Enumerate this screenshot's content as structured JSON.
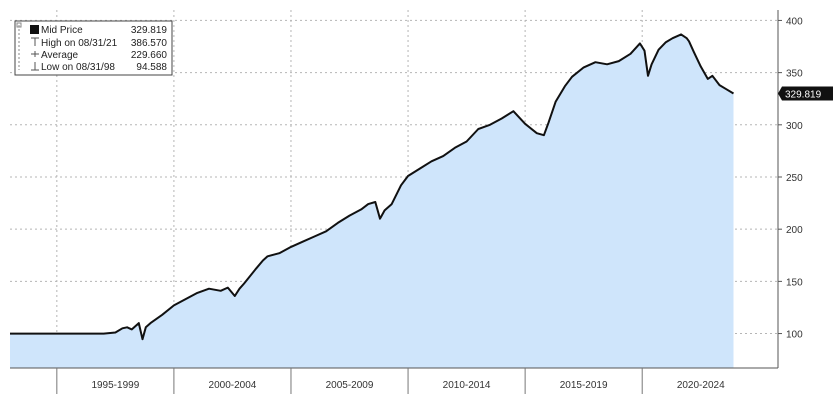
{
  "chart_data": {
    "type": "area",
    "legend": [
      {
        "label": "Mid Price",
        "value": "329.819",
        "icon": "filled-square-icon"
      },
      {
        "label": "High on 08/31/21",
        "value": "386.570",
        "icon": "high-marker-icon"
      },
      {
        "label": "Average",
        "value": "229.660",
        "icon": "average-marker-icon"
      },
      {
        "label": "Low on 08/31/98",
        "value": "94.588",
        "icon": "low-marker-icon"
      }
    ],
    "legend_position": "top-left",
    "last_value_label": "329.819",
    "x_period_labels": [
      "1995-1999",
      "2000-2004",
      "2005-2009",
      "2010-2014",
      "2015-2019",
      "2020-2024"
    ],
    "y_ticks": [
      100,
      150,
      200,
      250,
      300,
      350,
      400
    ],
    "ylim": [
      67,
      410
    ],
    "xlim": [
      1993.0,
      2025.8
    ],
    "grid": true,
    "fill_color": "#cfe5fb",
    "line_color": "#111111",
    "series": [
      {
        "x": [
          1993.0,
          1997.0,
          1997.5,
          1997.8,
          1998.0,
          1998.2,
          1998.5,
          1998.66,
          1998.8,
          1999.0,
          1999.5,
          2000.0,
          2000.5,
          2001.0,
          2001.5,
          2002.0,
          2002.3,
          2002.6,
          2002.8,
          2003.0,
          2003.5,
          2003.8,
          2004.0,
          2004.5,
          2005.0,
          2005.5,
          2006.0,
          2006.5,
          2007.0,
          2007.5,
          2008.0,
          2008.3,
          2008.6,
          2008.8,
          2009.0,
          2009.3,
          2009.7,
          2010.0,
          2010.5,
          2011.0,
          2011.5,
          2012.0,
          2012.5,
          2013.0,
          2013.5,
          2014.0,
          2014.5,
          2015.0,
          2015.5,
          2015.8,
          2016.0,
          2016.3,
          2016.7,
          2017.0,
          2017.5,
          2018.0,
          2018.5,
          2019.0,
          2019.5,
          2019.9,
          2020.1,
          2020.25,
          2020.4,
          2020.7,
          2021.0,
          2021.3,
          2021.66,
          2021.9,
          2022.0,
          2022.2,
          2022.5,
          2022.8,
          2023.0,
          2023.3,
          2023.6,
          2023.9
        ],
        "values": [
          100,
          100,
          101,
          105,
          106,
          104,
          110,
          94.6,
          106,
          110,
          118,
          127,
          133,
          139,
          143,
          141,
          144,
          136,
          143,
          148,
          162,
          170,
          174,
          177,
          183,
          188,
          193,
          198,
          206,
          213,
          219,
          224,
          226,
          210,
          218,
          224,
          242,
          251,
          258,
          265,
          270,
          278,
          284,
          296,
          300,
          306,
          313,
          301,
          292,
          290,
          302,
          322,
          337,
          346,
          355,
          360,
          358,
          361,
          368,
          378,
          371,
          347,
          358,
          372,
          379,
          383,
          386.6,
          383,
          380,
          370,
          356,
          344,
          347,
          338,
          334,
          330
        ]
      }
    ]
  }
}
